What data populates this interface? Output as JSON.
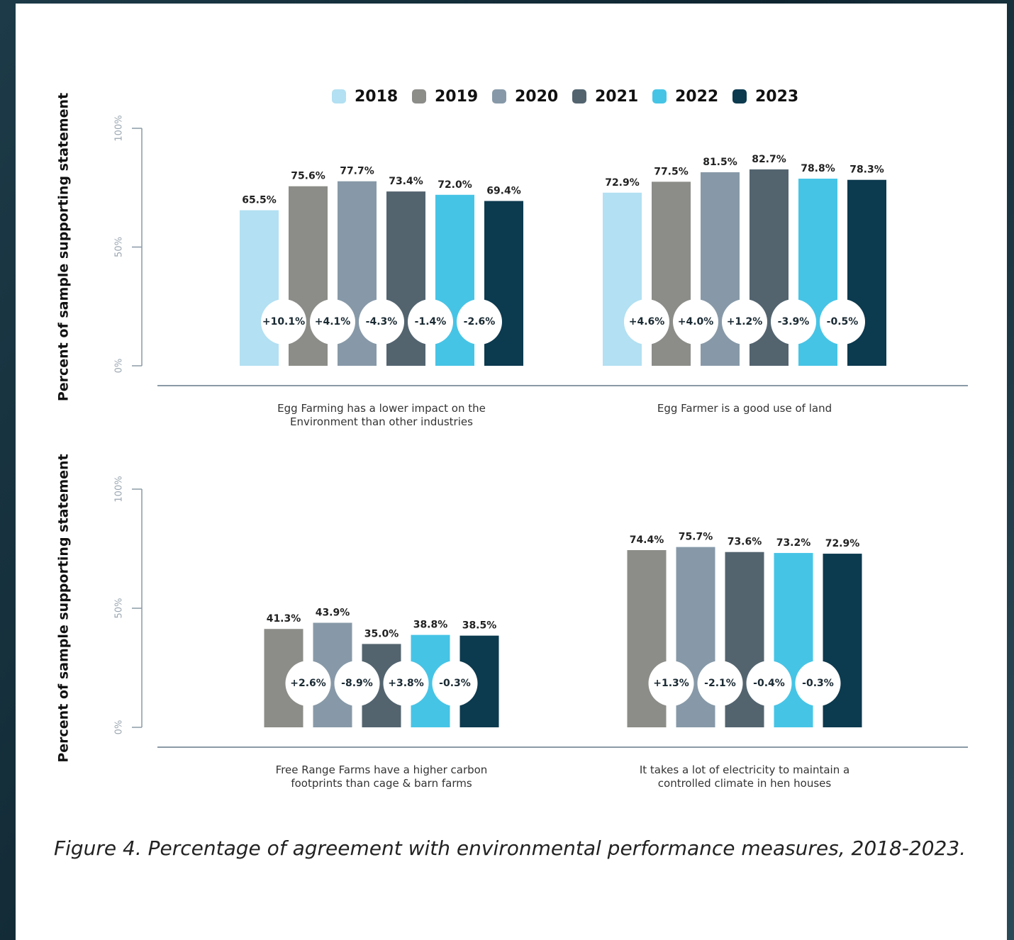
{
  "chart_data": [
    {
      "type": "bar",
      "y_label": "Percent of sample supporting statement",
      "categories": [
        "Egg Farming has a lower impact on the Environment than other industries",
        "Egg Farmer is a good use of land"
      ],
      "ylim": [
        0,
        100
      ],
      "yticks": [
        {
          "value": 0,
          "label": "0%"
        },
        {
          "value": 50,
          "label": "50%"
        },
        {
          "value": 100,
          "label": "100%"
        }
      ],
      "series": [
        {
          "name": "2018",
          "color": "#b3e0f2",
          "values": [
            65.5,
            72.9
          ],
          "value_labels": [
            "65.5%",
            "72.9%"
          ]
        },
        {
          "name": "2019",
          "color": "#8c8c88",
          "values": [
            75.6,
            77.5
          ],
          "value_labels": [
            "75.6%",
            "77.5%"
          ],
          "changes": [
            10.1,
            4.6
          ],
          "change_labels": [
            "+10.1%",
            "+4.6%"
          ]
        },
        {
          "name": "2020",
          "color": "#8799a8",
          "values": [
            77.7,
            81.5
          ],
          "value_labels": [
            "77.7%",
            "81.5%"
          ],
          "changes": [
            4.1,
            4.0
          ],
          "change_labels": [
            "+4.1%",
            "+4.0%"
          ]
        },
        {
          "name": "2021",
          "color": "#53646f",
          "values": [
            73.4,
            82.7
          ],
          "value_labels": [
            "73.4%",
            "82.7%"
          ],
          "changes": [
            -4.3,
            1.2
          ],
          "change_labels": [
            "-4.3%",
            "+1.2%"
          ]
        },
        {
          "name": "2022",
          "color": "#46c4e6",
          "values": [
            72.0,
            78.8
          ],
          "value_labels": [
            "72.0%",
            "78.8%"
          ],
          "changes": [
            -1.4,
            -3.9
          ],
          "change_labels": [
            "-1.4%",
            "-3.9%"
          ]
        },
        {
          "name": "2023",
          "color": "#0c3a4f",
          "values": [
            69.4,
            78.3
          ],
          "value_labels": [
            "69.4%",
            "78.3%"
          ],
          "changes": [
            -2.6,
            -0.5
          ],
          "change_labels": [
            "-2.6%",
            "-0.5%"
          ]
        }
      ]
    },
    {
      "type": "bar",
      "y_label": "Percent of sample supporting statement",
      "categories": [
        "Free Range Farms have a higher carbon footprints than cage & barn farms",
        "It takes a lot of electricity to maintain a controlled climate in hen houses"
      ],
      "ylim": [
        0,
        100
      ],
      "yticks": [
        {
          "value": 0,
          "label": "0%"
        },
        {
          "value": 50,
          "label": "50%"
        },
        {
          "value": 100,
          "label": "100%"
        }
      ],
      "series": [
        {
          "color": "#8c8c88",
          "values": [
            41.3,
            74.4
          ],
          "value_labels": [
            "41.3%",
            "74.4%"
          ]
        },
        {
          "color": "#8799a8",
          "values": [
            43.9,
            75.7
          ],
          "value_labels": [
            "43.9%",
            "75.7%"
          ],
          "changes": [
            2.6,
            1.3
          ],
          "change_labels": [
            "+2.6%",
            "+1.3%"
          ]
        },
        {
          "color": "#53646f",
          "values": [
            35.0,
            73.6
          ],
          "value_labels": [
            "35.0%",
            "73.6%"
          ],
          "changes": [
            -8.9,
            -2.1
          ],
          "change_labels": [
            "-8.9%",
            "-2.1%"
          ]
        },
        {
          "color": "#46c4e6",
          "values": [
            38.8,
            73.2
          ],
          "value_labels": [
            "38.8%",
            "73.2%"
          ],
          "changes": [
            3.8,
            -0.4
          ],
          "change_labels": [
            "+3.8%",
            "-0.4%"
          ]
        },
        {
          "color": "#0c3a4f",
          "values": [
            38.5,
            72.9
          ],
          "value_labels": [
            "38.5%",
            "72.9%"
          ],
          "changes": [
            -0.3,
            -0.3
          ],
          "change_labels": [
            "-0.3%",
            "-0.3%"
          ]
        }
      ]
    }
  ],
  "caption": "Figure 4. Percentage of agreement with environmental performance measures, 2018-2023."
}
